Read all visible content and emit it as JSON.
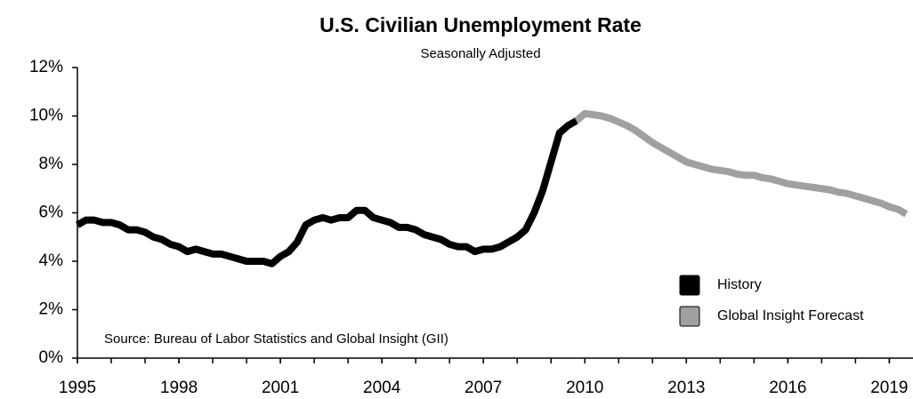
{
  "chart_data": {
    "type": "line",
    "title": "U.S. Civilian Unemployment Rate",
    "subtitle": "Seasonally Adjusted",
    "annotation": "Source: Bureau of Labor Statistics and Global Insight (GII)",
    "x": [
      1995,
      1995.25,
      1995.5,
      1995.75,
      1996,
      1996.25,
      1996.5,
      1996.75,
      1997,
      1997.25,
      1997.5,
      1997.75,
      1998,
      1998.25,
      1998.5,
      1998.75,
      1999,
      1999.25,
      1999.5,
      1999.75,
      2000,
      2000.25,
      2000.5,
      2000.75,
      2001,
      2001.25,
      2001.5,
      2001.75,
      2002,
      2002.25,
      2002.5,
      2002.75,
      2003,
      2003.25,
      2003.5,
      2003.75,
      2004,
      2004.25,
      2004.5,
      2004.75,
      2005,
      2005.25,
      2005.5,
      2005.75,
      2006,
      2006.25,
      2006.5,
      2006.75,
      2007,
      2007.25,
      2007.5,
      2007.75,
      2008,
      2008.25,
      2008.5,
      2008.75,
      2009,
      2009.25,
      2009.5,
      2009.75,
      2010,
      2010.25,
      2010.5,
      2010.75,
      2011,
      2011.25,
      2011.5,
      2011.75,
      2012,
      2012.25,
      2012.5,
      2012.75,
      2013,
      2013.25,
      2013.5,
      2013.75,
      2014,
      2014.25,
      2014.5,
      2014.75,
      2015,
      2015.25,
      2015.5,
      2015.75,
      2016,
      2016.25,
      2016.5,
      2016.75,
      2017,
      2017.25,
      2017.5,
      2017.75,
      2018,
      2018.25,
      2018.5,
      2018.75,
      2019,
      2019.25,
      2019.5
    ],
    "series": [
      {
        "name": "History",
        "color": "#000000",
        "values": [
          5.5,
          5.7,
          5.7,
          5.6,
          5.6,
          5.5,
          5.3,
          5.3,
          5.2,
          5.0,
          4.9,
          4.7,
          4.6,
          4.4,
          4.5,
          4.4,
          4.3,
          4.3,
          4.2,
          4.1,
          4.0,
          4.0,
          4.0,
          3.9,
          4.2,
          4.4,
          4.8,
          5.5,
          5.7,
          5.8,
          5.7,
          5.8,
          5.8,
          6.1,
          6.1,
          5.8,
          5.7,
          5.6,
          5.4,
          5.4,
          5.3,
          5.1,
          5.0,
          4.9,
          4.7,
          4.6,
          4.6,
          4.4,
          4.5,
          4.5,
          4.6,
          4.8,
          5.0,
          5.3,
          6.0,
          6.9,
          8.1,
          9.3,
          9.6,
          9.8,
          null,
          null,
          null,
          null,
          null,
          null,
          null,
          null,
          null,
          null,
          null,
          null,
          null,
          null,
          null,
          null,
          null,
          null,
          null,
          null,
          null,
          null,
          null,
          null,
          null,
          null,
          null,
          null,
          null,
          null,
          null,
          null,
          null,
          null,
          null,
          null,
          null,
          null,
          null
        ]
      },
      {
        "name": "Global Insight Forecast",
        "color": "#a0a0a0",
        "values": [
          null,
          null,
          null,
          null,
          null,
          null,
          null,
          null,
          null,
          null,
          null,
          null,
          null,
          null,
          null,
          null,
          null,
          null,
          null,
          null,
          null,
          null,
          null,
          null,
          null,
          null,
          null,
          null,
          null,
          null,
          null,
          null,
          null,
          null,
          null,
          null,
          null,
          null,
          null,
          null,
          null,
          null,
          null,
          null,
          null,
          null,
          null,
          null,
          null,
          null,
          null,
          null,
          null,
          null,
          null,
          null,
          null,
          null,
          null,
          9.8,
          10.1,
          10.05,
          10.0,
          9.9,
          9.75,
          9.6,
          9.4,
          9.15,
          8.9,
          8.7,
          8.5,
          8.3,
          8.1,
          8.0,
          7.9,
          7.8,
          7.75,
          7.7,
          7.6,
          7.55,
          7.55,
          7.45,
          7.4,
          7.3,
          7.2,
          7.15,
          7.1,
          7.05,
          7.0,
          6.95,
          6.85,
          6.8,
          6.7,
          6.6,
          6.5,
          6.4,
          6.25,
          6.15,
          5.95
        ]
      }
    ],
    "xlim": [
      1995,
      2019.7
    ],
    "xticks": [
      1995,
      1998,
      2001,
      2004,
      2007,
      2010,
      2013,
      2016,
      2019
    ],
    "ylim": [
      0,
      12
    ],
    "yticks": [
      {
        "value": 0,
        "label": "0%"
      },
      {
        "value": 2,
        "label": "2%"
      },
      {
        "value": 4,
        "label": "4%"
      },
      {
        "value": 6,
        "label": "6%"
      },
      {
        "value": 8,
        "label": "8%"
      },
      {
        "value": 10,
        "label": "10%"
      },
      {
        "value": 12,
        "label": "12%"
      }
    ],
    "grid": false
  }
}
